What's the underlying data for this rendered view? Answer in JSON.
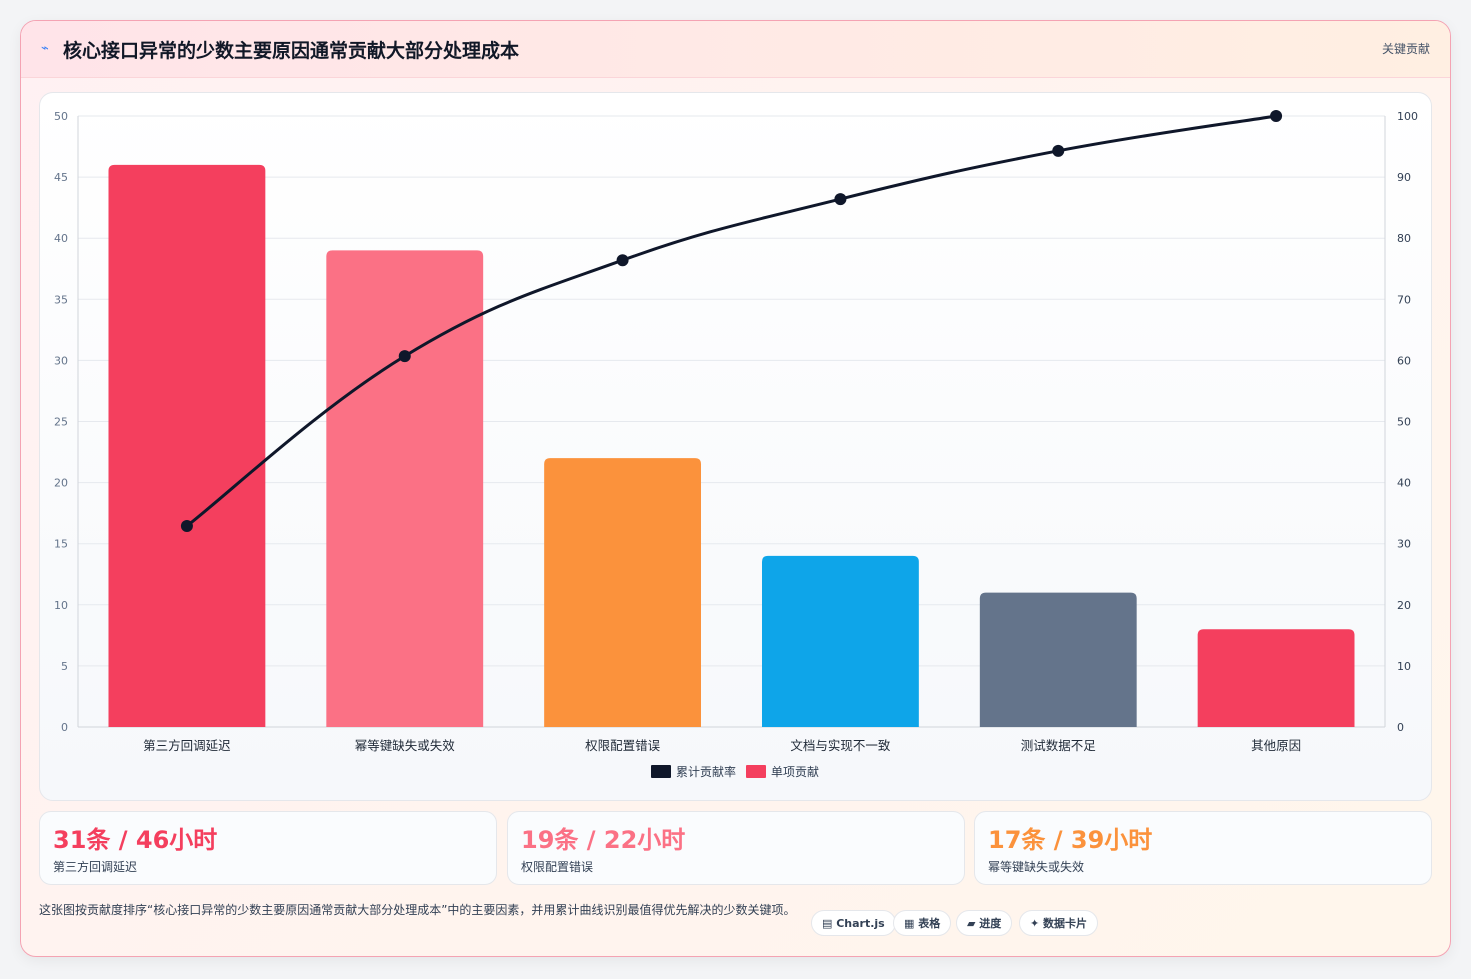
{
  "header": {
    "icon": "chart-icon",
    "title": "核心接口异常的少数主要原因通常贡献大部分处理成本",
    "tag": "关键贡献"
  },
  "chart_data": {
    "type": "bar",
    "categories": [
      "第三方回调延迟",
      "幂等键缺失或失效",
      "权限配置错误",
      "文档与实现不一致",
      "测试数据不足",
      "其他原因"
    ],
    "series": [
      {
        "name": "单项贡献",
        "type": "bar",
        "axis": "left",
        "values": [
          46,
          39,
          22,
          14,
          11,
          8
        ],
        "colors": [
          "#f43f5e",
          "#fb7185",
          "#fb923c",
          "#0ea5e9",
          "#64748b",
          "#f43f5e"
        ]
      },
      {
        "name": "累计贡献率",
        "type": "line",
        "axis": "right",
        "values": [
          32.9,
          60.7,
          76.4,
          86.4,
          94.3,
          100
        ],
        "color": "#0f172a"
      }
    ],
    "left_axis": {
      "min": 0,
      "max": 50,
      "ticks": [
        0,
        5,
        10,
        15,
        20,
        25,
        30,
        35,
        40,
        45,
        50
      ]
    },
    "right_axis": {
      "min": 0,
      "max": 100,
      "ticks": [
        0,
        10,
        20,
        30,
        40,
        50,
        60,
        70,
        80,
        90,
        100
      ]
    },
    "legend": {
      "placement": "bottom",
      "items": [
        {
          "label": "累计贡献率",
          "color": "#0f172a"
        },
        {
          "label": "单项贡献",
          "color": "#f43f5e"
        }
      ]
    },
    "grid": true
  },
  "stats": [
    {
      "value": "31条 / 46小时",
      "label": "第三方回调延迟",
      "color": "#f43f5e"
    },
    {
      "value": "19条 / 22小时",
      "label": "权限配置错误",
      "color": "#fb7185"
    },
    {
      "value": "17条 / 39小时",
      "label": "幂等键缺失或失效",
      "color": "#fb923c"
    }
  ],
  "footer": {
    "description": "这张图按贡献度排序“核心接口异常的少数主要原因通常贡献大部分处理成本”中的主要因素，并用累计曲线识别最值得优先解决的少数关键项。",
    "chips": [
      "▤ Chart.js",
      "▦ 表格",
      "▰ 进度",
      "✦ 数据卡片"
    ]
  }
}
